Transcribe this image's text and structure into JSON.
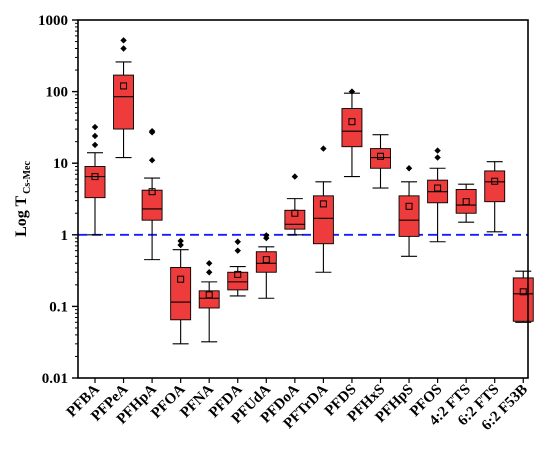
{
  "chart_data": {
    "type": "box",
    "ylabel": "Log T",
    "ylabel_subscript": "Cs-Mec",
    "yscale": "log",
    "ylim": [
      0.01,
      1000
    ],
    "yticks": [
      "0.01",
      "0.1",
      "1",
      "10",
      "100",
      "1000"
    ],
    "reference_line": {
      "y": 1,
      "style": "dashed",
      "color": "#1a1aff"
    },
    "box_color": "#ee3b3b",
    "categories": [
      "PFBA",
      "PFPeA",
      "PFHpA",
      "PFOA",
      "PFNA",
      "PFDA",
      "PFUdA",
      "PFDoA",
      "PFTrDA",
      "PFDS",
      "PFHxS",
      "PFHpS",
      "PFOS",
      "4:2 FTS",
      "6:2 FTS",
      "6:2 F53B"
    ],
    "boxes": [
      {
        "min": 1.0,
        "q1": 3.3,
        "median": 6.5,
        "q3": 9.0,
        "max": 14,
        "mean": 6.5,
        "outliers": [
          18,
          24,
          32
        ]
      },
      {
        "min": 12,
        "q1": 30,
        "median": 85,
        "q3": 170,
        "max": 260,
        "mean": 120,
        "outliers": [
          400,
          520
        ]
      },
      {
        "min": 0.45,
        "q1": 1.6,
        "median": 2.3,
        "q3": 4.2,
        "max": 6.2,
        "mean": 4.0,
        "outliers": [
          11,
          27,
          28
        ]
      },
      {
        "min": 0.03,
        "q1": 0.065,
        "median": 0.115,
        "q3": 0.35,
        "max": 0.62,
        "mean": 0.24,
        "outliers": [
          0.72,
          0.82
        ]
      },
      {
        "min": 0.032,
        "q1": 0.095,
        "median": 0.13,
        "q3": 0.165,
        "max": 0.22,
        "mean": 0.145,
        "outliers": [
          0.3,
          0.4
        ]
      },
      {
        "min": 0.14,
        "q1": 0.17,
        "median": 0.22,
        "q3": 0.3,
        "max": 0.36,
        "mean": 0.28,
        "outliers": [
          0.6,
          0.8
        ]
      },
      {
        "min": 0.13,
        "q1": 0.3,
        "median": 0.4,
        "q3": 0.58,
        "max": 0.68,
        "mean": 0.45,
        "outliers": [
          0.9,
          0.98
        ]
      },
      {
        "min": 1.0,
        "q1": 1.2,
        "median": 1.4,
        "q3": 2.2,
        "max": 3.2,
        "mean": 2.0,
        "outliers": [
          6.5
        ]
      },
      {
        "min": 0.3,
        "q1": 0.75,
        "median": 1.7,
        "q3": 3.5,
        "max": 5.5,
        "mean": 2.7,
        "outliers": [
          16
        ]
      },
      {
        "min": 6.5,
        "q1": 17,
        "median": 28,
        "q3": 58,
        "max": 95,
        "mean": 38,
        "outliers": [
          100
        ]
      },
      {
        "min": 4.5,
        "q1": 8.5,
        "median": 12,
        "q3": 16,
        "max": 25,
        "mean": 12.5,
        "outliers": []
      },
      {
        "min": 0.5,
        "q1": 0.95,
        "median": 1.6,
        "q3": 3.5,
        "max": 5.5,
        "mean": 2.5,
        "outliers": [
          8.5
        ]
      },
      {
        "min": 0.8,
        "q1": 2.8,
        "median": 4.0,
        "q3": 5.8,
        "max": 8.5,
        "mean": 4.5,
        "outliers": [
          12,
          15
        ]
      },
      {
        "min": 1.5,
        "q1": 2.0,
        "median": 2.6,
        "q3": 4.3,
        "max": 5.1,
        "mean": 2.9,
        "outliers": []
      },
      {
        "min": 1.1,
        "q1": 2.9,
        "median": 5.5,
        "q3": 7.8,
        "max": 10.5,
        "mean": 5.6,
        "outliers": []
      },
      {
        "min": 0.06,
        "q1": 0.062,
        "median": 0.15,
        "q3": 0.25,
        "max": 0.31,
        "mean": 0.16,
        "outliers": []
      }
    ]
  }
}
